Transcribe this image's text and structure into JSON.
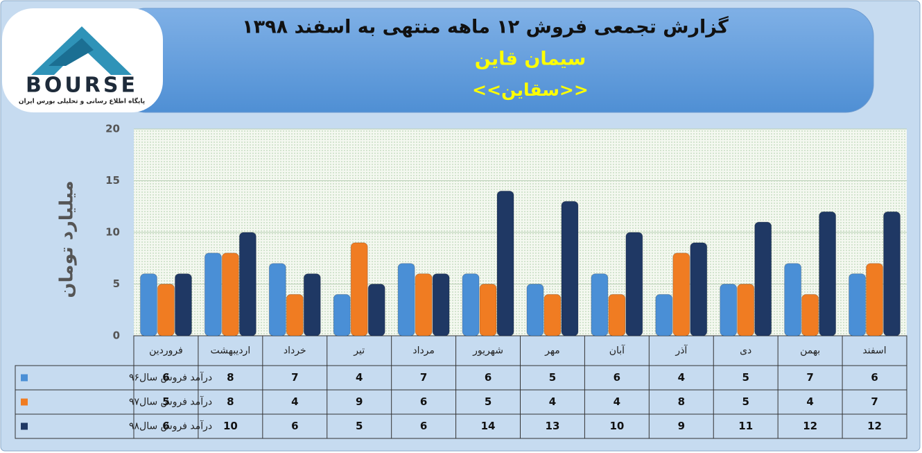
{
  "logo": {
    "brand": "BOURSE",
    "tagline": "پایگاه اطلاع رسانی و تحلیلی بورس ایران"
  },
  "chart_data": {
    "type": "bar",
    "title": "گزارش تجمعی فروش  ۱۲ ماهه منتهی به اسفند ۱۳۹۸",
    "subtitle": "سیمان قاین",
    "ticker": "<<سقاین>>",
    "y_label": "میلیارد تومان",
    "categories": [
      "فروردین",
      "اردیبهشت",
      "خرداد",
      "تیر",
      "مرداد",
      "شهریور",
      "مهر",
      "آبان",
      "آذر",
      "دی",
      "بهمن",
      "اسفند"
    ],
    "series": [
      {
        "name": "درآمد فروش سال۹۶",
        "color": "#4a8fd6",
        "values": [
          6,
          8,
          7,
          4,
          7,
          6,
          5,
          6,
          4,
          5,
          7,
          6
        ]
      },
      {
        "name": "درآمد فروش سال۹۷",
        "color": "#f07c22",
        "values": [
          5,
          8,
          4,
          9,
          6,
          5,
          4,
          4,
          8,
          5,
          4,
          7
        ]
      },
      {
        "name": "درآمد فروش سال۹۸",
        "color": "#1f3864",
        "values": [
          6,
          10,
          6,
          5,
          6,
          14,
          13,
          10,
          9,
          11,
          12,
          12
        ]
      }
    ],
    "ylim": [
      0,
      20
    ],
    "yticks": [
      0,
      5,
      10,
      15,
      20
    ],
    "grid": true
  }
}
